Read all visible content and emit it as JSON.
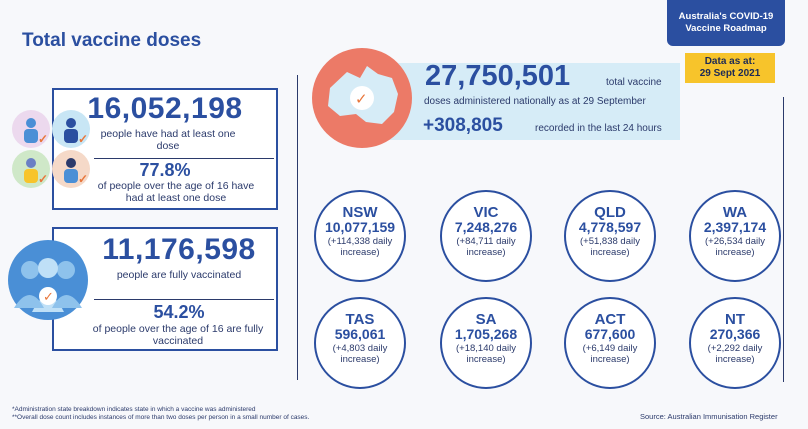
{
  "header": {
    "title": "Total vaccine doses",
    "roadmap_line1": "Australia's COVID-19",
    "roadmap_line2": "Vaccine Roadmap",
    "data_as_at_label": "Data as at:",
    "data_as_at_date": "29 Sept 2021"
  },
  "first_dose": {
    "count": "16,052,198",
    "count_text": "people have had at least one dose",
    "percent": "77.8%",
    "percent_text": "of people over the age of 16 have had at least one dose"
  },
  "fully_vaccinated": {
    "count": "11,176,598",
    "count_text": "people are fully vaccinated",
    "percent": "54.2%",
    "percent_text": "of people over the age of 16 are fully vaccinated"
  },
  "national": {
    "total": "27,750,501",
    "total_label_a": "total vaccine",
    "total_label_b": "doses administered nationally as at 29 September",
    "delta": "+308,805",
    "delta_label": "recorded in the last 24 hours"
  },
  "states": [
    {
      "code": "NSW",
      "value": "10,077,159",
      "increase": "(+114,338 daily increase)"
    },
    {
      "code": "VIC",
      "value": "7,248,276",
      "increase": "(+84,711 daily increase)"
    },
    {
      "code": "QLD",
      "value": "4,778,597",
      "increase": "(+51,838 daily increase)"
    },
    {
      "code": "WA",
      "value": "2,397,174",
      "increase": "(+26,534 daily increase)"
    },
    {
      "code": "TAS",
      "value": "596,061",
      "increase": "(+4,803 daily increase)"
    },
    {
      "code": "SA",
      "value": "1,705,268",
      "increase": "(+18,140 daily increase)"
    },
    {
      "code": "ACT",
      "value": "677,600",
      "increase": "(+6,149 daily increase)"
    },
    {
      "code": "NT",
      "value": "270,366",
      "increase": "(+2,292 daily increase)"
    }
  ],
  "footer": {
    "note1": "*Administration state breakdown indicates state in which a vaccine was administered",
    "note2": "**Overall dose count includes instances of more than two doses per person in a small number of cases.",
    "source": "Source: Australian Immunisation Register"
  },
  "colors": {
    "brand_blue": "#2b4fa0",
    "accent_orange": "#e8763b",
    "badge_yellow": "#f7c42b",
    "band_light_blue": "#d6ecf7",
    "australia_coral": "#ec7a67"
  },
  "icons": [
    "people-icon",
    "crowd-icon",
    "check-icon",
    "australia-map-icon"
  ]
}
